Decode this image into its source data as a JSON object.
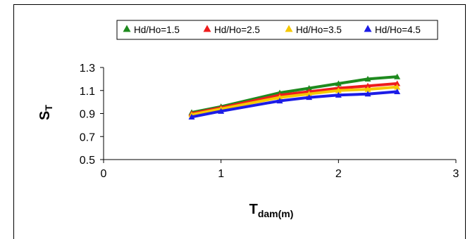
{
  "chart_data": {
    "type": "scatter",
    "xlabel": {
      "main": "T",
      "sub": "dam(m)"
    },
    "ylabel": {
      "main": "S",
      "sub": "T"
    },
    "xlim": [
      0,
      3
    ],
    "ylim": [
      0.5,
      1.3
    ],
    "x_ticks": [
      "0",
      "1",
      "2",
      "3"
    ],
    "y_ticks": [
      "0.5",
      "0.7",
      "0.9",
      "1.1",
      "1.3"
    ],
    "grid": false,
    "legend_position": "top",
    "marker": "triangle",
    "x": [
      0.75,
      1.0,
      1.5,
      1.75,
      2.0,
      2.25,
      2.5
    ],
    "series": [
      {
        "name": "Hd/Ho=1.5",
        "color": "#1E8A1E",
        "values": [
          0.91,
          0.96,
          1.08,
          1.12,
          1.16,
          1.2,
          1.22
        ]
      },
      {
        "name": "Hd/Ho=2.5",
        "color": "#EE1C1C",
        "values": [
          0.9,
          0.95,
          1.06,
          1.09,
          1.12,
          1.14,
          1.16
        ]
      },
      {
        "name": "Hd/Ho=3.5",
        "color": "#F5C800",
        "values": [
          0.89,
          0.94,
          1.04,
          1.07,
          1.1,
          1.11,
          1.13
        ]
      },
      {
        "name": "Hd/Ho=4.5",
        "color": "#1C1CE6",
        "values": [
          0.87,
          0.92,
          1.01,
          1.04,
          1.06,
          1.07,
          1.09
        ]
      }
    ]
  }
}
